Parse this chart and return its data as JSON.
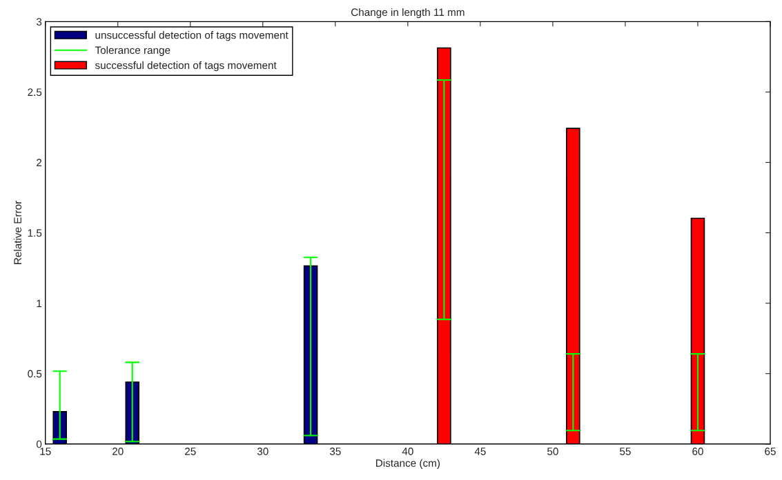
{
  "chart_data": {
    "type": "bar",
    "title": "Change in length 11 mm",
    "xlabel": "Distance (cm)",
    "ylabel": "Relative Error",
    "series": [
      {
        "name": "unsuccessful detection of tags movement",
        "color": "#000080",
        "x": [
          16,
          21,
          33.3
        ],
        "values": [
          0.23,
          0.44,
          1.265
        ],
        "errors": [
          [
            0.035,
            0.517
          ],
          [
            0.017,
            0.58
          ],
          [
            0.06,
            1.325
          ]
        ]
      },
      {
        "name": "successful detection of tags movement",
        "color": "#ff0000",
        "x": [
          42.5,
          51.4,
          60
        ],
        "values": [
          2.813,
          2.242,
          1.603
        ],
        "errors": [
          [
            0.885,
            2.585
          ],
          [
            0.096,
            0.64
          ],
          [
            0.096,
            0.64
          ]
        ]
      }
    ],
    "annotations": [
      "Tolerance range"
    ],
    "xlim": [
      15,
      65
    ],
    "xticks": [
      15,
      20,
      25,
      30,
      35,
      40,
      45,
      50,
      55,
      60,
      65
    ],
    "ylim": [
      0,
      3
    ],
    "yticks": [
      0,
      0.5,
      1,
      1.5,
      2,
      2.5,
      3
    ],
    "grid": false,
    "legend": "top left"
  }
}
